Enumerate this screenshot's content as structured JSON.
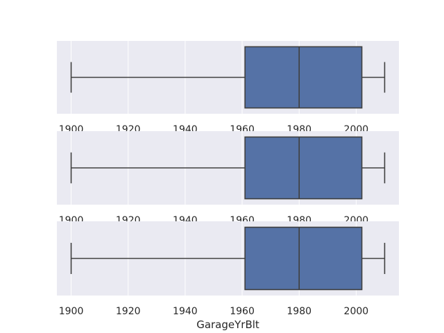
{
  "chart_data": [
    {
      "type": "boxplot",
      "xlabel": "",
      "xlim": [
        1895,
        2015
      ],
      "xticks": [
        1900,
        1920,
        1940,
        1960,
        1980,
        2000
      ],
      "box": {
        "whisker_low": 1900,
        "q1": 1961,
        "median": 1980,
        "q3": 2002,
        "whisker_high": 2010
      },
      "grid": true,
      "color": "#5572a6"
    },
    {
      "type": "boxplot",
      "xlabel": "",
      "xlim": [
        1895,
        2015
      ],
      "xticks": [
        1900,
        1920,
        1940,
        1960,
        1980,
        2000
      ],
      "box": {
        "whisker_low": 1900,
        "q1": 1961,
        "median": 1980,
        "q3": 2002,
        "whisker_high": 2010
      },
      "grid": true,
      "color": "#5572a6"
    },
    {
      "type": "boxplot",
      "xlabel": "GarageYrBlt",
      "xlim": [
        1895,
        2015
      ],
      "xticks": [
        1900,
        1920,
        1940,
        1960,
        1980,
        2000
      ],
      "box": {
        "whisker_low": 1900,
        "q1": 1961,
        "median": 1980,
        "q3": 2002,
        "whisker_high": 2010
      },
      "grid": true,
      "color": "#5572a6"
    }
  ]
}
